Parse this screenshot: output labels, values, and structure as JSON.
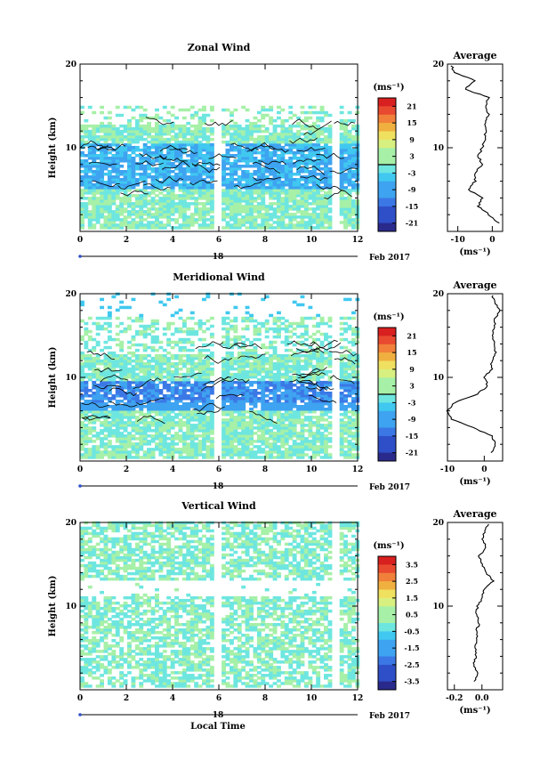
{
  "colorbar_unit": "(ms⁻¹)",
  "date_label": "Feb 2017",
  "day_label": "18",
  "xlabel_bottom": "Local Time",
  "colors": [
    "#2a2a8c",
    "#2f4fc8",
    "#3b78e6",
    "#3ea3f0",
    "#40c8f0",
    "#6ee6e0",
    "#a6f0a8",
    "#d8f080",
    "#f0e060",
    "#f0b040",
    "#f0803a",
    "#e84a30",
    "#d82020"
  ],
  "chart_data": [
    {
      "type": "heatmap",
      "title": "Zonal Wind",
      "xlabel": "",
      "ylabel": "Height (km)",
      "xlim": [
        0,
        12
      ],
      "ylim": [
        0,
        20
      ],
      "x_ticks": [
        "0",
        "2",
        "4",
        "6",
        "8",
        "10",
        "12"
      ],
      "y_ticks": [
        "10",
        "20"
      ],
      "colorbar_range": [
        -24,
        24
      ],
      "colorbar_ticks": [
        "21",
        "15",
        "9",
        "3",
        "-3",
        "-9",
        "-15",
        "-21"
      ],
      "mean_profile": {
        "title": "Average",
        "xlabel": "(ms⁻¹)",
        "xlim": [
          -13,
          3
        ],
        "x_ticks": [
          "-10",
          "0"
        ],
        "y_ticks": [
          "10",
          "20"
        ],
        "heights": [
          1,
          2,
          3,
          4,
          5,
          6,
          7,
          8,
          9,
          10,
          11,
          12,
          13,
          14,
          15,
          16,
          17,
          18,
          19,
          20
        ],
        "values": [
          2,
          -1,
          -4,
          -3,
          -7,
          -5,
          -5,
          -3,
          -4,
          -3,
          -2,
          -2,
          -2,
          -1,
          -2,
          -1,
          -8,
          -5,
          -11,
          -12
        ]
      }
    },
    {
      "type": "heatmap",
      "title": "Meridional Wind",
      "xlabel": "",
      "ylabel": "Height (km)",
      "xlim": [
        0,
        12
      ],
      "ylim": [
        0,
        20
      ],
      "x_ticks": [
        "0",
        "2",
        "4",
        "6",
        "8",
        "10",
        "12"
      ],
      "y_ticks": [
        "10",
        "20"
      ],
      "colorbar_range": [
        -24,
        24
      ],
      "colorbar_ticks": [
        "21",
        "15",
        "9",
        "3",
        "-3",
        "-9",
        "-15",
        "-21"
      ],
      "mean_profile": {
        "title": "Average",
        "xlabel": "(ms⁻¹)",
        "xlim": [
          -10,
          5
        ],
        "x_ticks": [
          "-10",
          "0"
        ],
        "y_ticks": [
          "10",
          "20"
        ],
        "heights": [
          1,
          2,
          3,
          4,
          5,
          6,
          7,
          8,
          9,
          10,
          11,
          12,
          13,
          14,
          15,
          16,
          17,
          18,
          19,
          20
        ],
        "values": [
          2,
          3,
          2,
          -3,
          -9,
          -10,
          -8,
          -2,
          1,
          0,
          2,
          2,
          3,
          3,
          2,
          3,
          3,
          4,
          3,
          2
        ]
      }
    },
    {
      "type": "heatmap",
      "title": "Vertical Wind",
      "xlabel": "Local Time",
      "ylabel": "Height (km)",
      "xlim": [
        0,
        12
      ],
      "ylim": [
        0,
        20
      ],
      "x_ticks": [
        "0",
        "2",
        "4",
        "6",
        "8",
        "10",
        "12"
      ],
      "y_ticks": [
        "10",
        "20"
      ],
      "colorbar_range": [
        -4,
        4
      ],
      "colorbar_ticks": [
        "3.5",
        "2.5",
        "1.5",
        "0.5",
        "-0.5",
        "-1.5",
        "-2.5",
        "-3.5"
      ],
      "mean_profile": {
        "title": "Average",
        "xlabel": "(ms⁻¹)",
        "xlim": [
          -0.25,
          0.15
        ],
        "x_ticks": [
          "-0.2",
          "0.0"
        ],
        "y_ticks": [
          "10",
          "20"
        ],
        "heights": [
          1,
          2,
          3,
          4,
          5,
          6,
          7,
          8,
          9,
          10,
          11,
          12,
          13,
          14,
          15,
          16,
          17,
          18,
          19,
          20
        ],
        "values": [
          -0.05,
          -0.03,
          -0.06,
          -0.04,
          -0.05,
          -0.03,
          -0.04,
          -0.02,
          -0.04,
          -0.03,
          0.0,
          0.02,
          0.08,
          0.03,
          0.0,
          -0.02,
          0.03,
          0.0,
          0.02,
          0.05
        ]
      }
    }
  ]
}
